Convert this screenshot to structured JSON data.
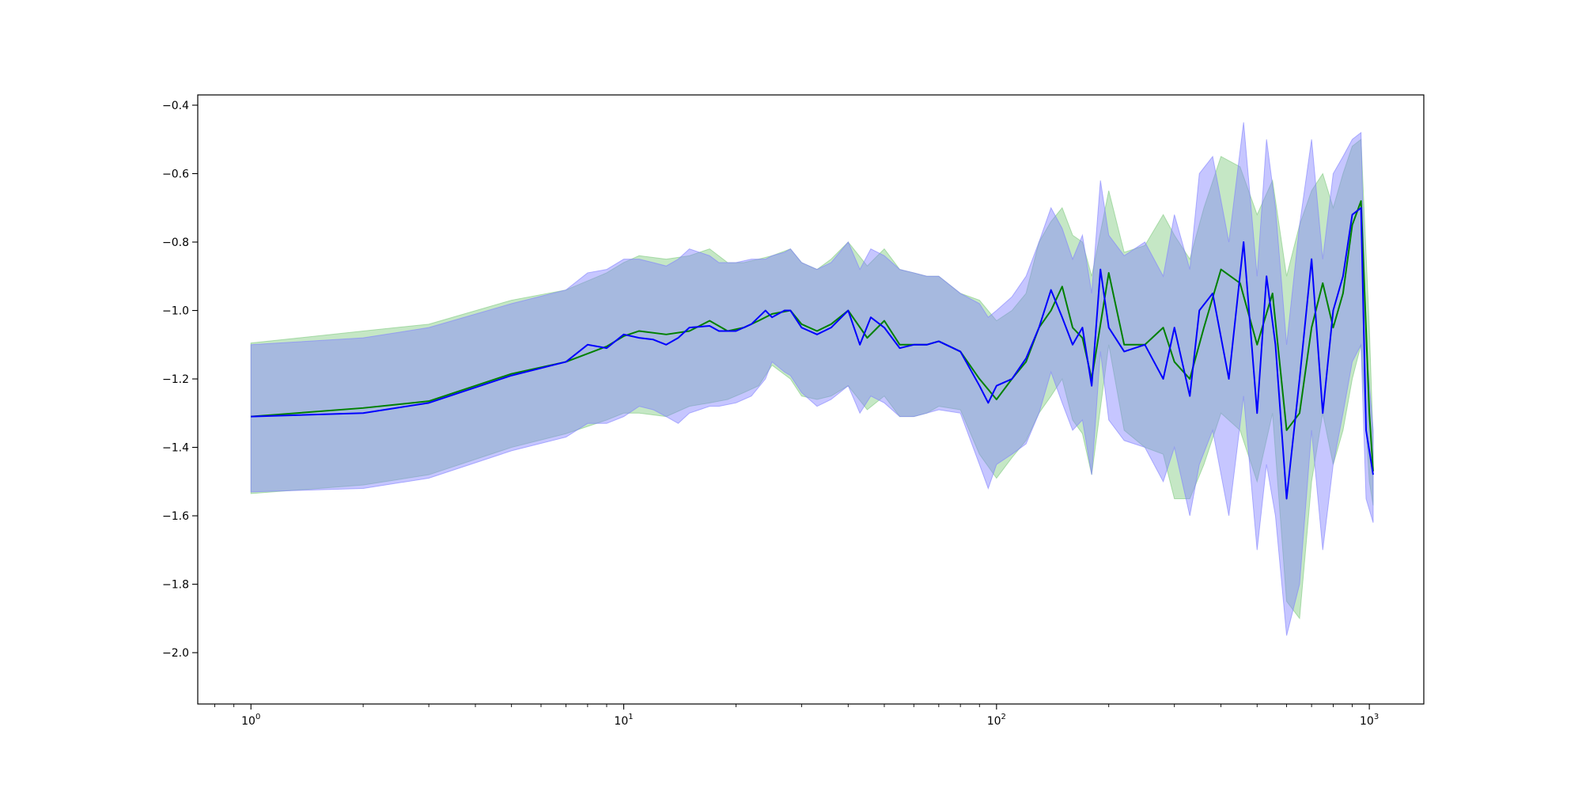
{
  "chart_data": {
    "type": "line",
    "title": "",
    "xlabel": "",
    "ylabel": "",
    "xscale": "log",
    "xlim": [
      0.72,
      1400
    ],
    "ylim": [
      -2.15,
      -0.37
    ],
    "grid": false,
    "x_ticks": [
      {
        "base": "10",
        "exp": "0",
        "value": 1
      },
      {
        "base": "10",
        "exp": "1",
        "value": 10
      },
      {
        "base": "10",
        "exp": "2",
        "value": 100
      },
      {
        "base": "10",
        "exp": "3",
        "value": 1000
      }
    ],
    "y_ticks": [
      {
        "label": "−0.4",
        "value": -0.4
      },
      {
        "label": "−0.6",
        "value": -0.6
      },
      {
        "label": "−0.8",
        "value": -0.8
      },
      {
        "label": "−1.0",
        "value": -1.0
      },
      {
        "label": "−1.2",
        "value": -1.2
      },
      {
        "label": "−1.4",
        "value": -1.4
      },
      {
        "label": "−1.6",
        "value": -1.6
      },
      {
        "label": "−1.8",
        "value": -1.8
      },
      {
        "label": "−2.0",
        "value": -2.0
      }
    ],
    "series": [
      {
        "color": "#008000",
        "band_color": "#7fc97f",
        "x": [
          1,
          2,
          3,
          5,
          7,
          9,
          10,
          11,
          13,
          15,
          17,
          19,
          21,
          23,
          25,
          28,
          30,
          33,
          36,
          40,
          45,
          50,
          55,
          60,
          65,
          70,
          80,
          90,
          100,
          110,
          120,
          130,
          140,
          150,
          160,
          170,
          180,
          200,
          220,
          250,
          280,
          300,
          330,
          360,
          400,
          450,
          500,
          550,
          600,
          650,
          700,
          750,
          800,
          850,
          900,
          950,
          1000,
          1024
        ],
        "y": [
          -1.31,
          -1.285,
          -1.265,
          -1.185,
          -1.15,
          -1.105,
          -1.075,
          -1.06,
          -1.07,
          -1.06,
          -1.03,
          -1.06,
          -1.05,
          -1.03,
          -1.01,
          -1.0,
          -1.04,
          -1.06,
          -1.04,
          -1.0,
          -1.08,
          -1.03,
          -1.1,
          -1.1,
          -1.1,
          -1.09,
          -1.12,
          -1.2,
          -1.26,
          -1.2,
          -1.15,
          -1.05,
          -1.0,
          -0.93,
          -1.05,
          -1.08,
          -1.2,
          -0.89,
          -1.1,
          -1.1,
          -1.05,
          -1.15,
          -1.2,
          -1.05,
          -0.88,
          -0.92,
          -1.1,
          -0.95,
          -1.35,
          -1.3,
          -1.05,
          -0.92,
          -1.05,
          -0.95,
          -0.75,
          -0.68,
          -1.3,
          -1.47
        ],
        "lower": [
          -1.535,
          -1.51,
          -1.48,
          -1.4,
          -1.36,
          -1.32,
          -1.3,
          -1.3,
          -1.31,
          -1.28,
          -1.27,
          -1.26,
          -1.24,
          -1.22,
          -1.16,
          -1.2,
          -1.25,
          -1.26,
          -1.25,
          -1.22,
          -1.29,
          -1.25,
          -1.31,
          -1.31,
          -1.3,
          -1.28,
          -1.29,
          -1.42,
          -1.49,
          -1.43,
          -1.38,
          -1.3,
          -1.25,
          -1.2,
          -1.32,
          -1.36,
          -1.48,
          -1.1,
          -1.35,
          -1.4,
          -1.42,
          -1.55,
          -1.55,
          -1.45,
          -1.3,
          -1.35,
          -1.5,
          -1.3,
          -1.85,
          -1.9,
          -1.5,
          -1.3,
          -1.45,
          -1.35,
          -1.2,
          -1.1,
          -1.5,
          -1.57
        ],
        "upper": [
          -1.095,
          -1.06,
          -1.04,
          -0.97,
          -0.94,
          -0.89,
          -0.86,
          -0.84,
          -0.85,
          -0.84,
          -0.82,
          -0.86,
          -0.86,
          -0.85,
          -0.84,
          -0.82,
          -0.86,
          -0.88,
          -0.85,
          -0.8,
          -0.87,
          -0.82,
          -0.88,
          -0.89,
          -0.9,
          -0.9,
          -0.95,
          -0.97,
          -1.03,
          -1.0,
          -0.95,
          -0.8,
          -0.74,
          -0.7,
          -0.78,
          -0.8,
          -0.9,
          -0.65,
          -0.83,
          -0.81,
          -0.72,
          -0.78,
          -0.85,
          -0.7,
          -0.55,
          -0.58,
          -0.72,
          -0.62,
          -0.9,
          -0.75,
          -0.65,
          -0.6,
          -0.7,
          -0.6,
          -0.52,
          -0.5,
          -1.05,
          -1.38
        ]
      },
      {
        "color": "#0000ff",
        "band_color": "#8080ff",
        "x": [
          1,
          2,
          3,
          5,
          7,
          8,
          9,
          10,
          11,
          12,
          13,
          14,
          15,
          17,
          18,
          20,
          22,
          24,
          25,
          27,
          28,
          30,
          33,
          36,
          40,
          43,
          46,
          50,
          55,
          60,
          65,
          70,
          80,
          90,
          95,
          100,
          110,
          120,
          130,
          140,
          150,
          160,
          170,
          180,
          190,
          200,
          220,
          250,
          280,
          300,
          330,
          350,
          380,
          420,
          460,
          500,
          530,
          560,
          600,
          650,
          700,
          750,
          800,
          850,
          900,
          950,
          980,
          1024
        ],
        "y": [
          -1.31,
          -1.3,
          -1.27,
          -1.19,
          -1.15,
          -1.1,
          -1.11,
          -1.07,
          -1.08,
          -1.085,
          -1.1,
          -1.08,
          -1.05,
          -1.045,
          -1.06,
          -1.06,
          -1.04,
          -1.0,
          -1.02,
          -1.0,
          -1.0,
          -1.05,
          -1.07,
          -1.05,
          -1.0,
          -1.1,
          -1.02,
          -1.05,
          -1.11,
          -1.1,
          -1.1,
          -1.09,
          -1.12,
          -1.22,
          -1.27,
          -1.22,
          -1.2,
          -1.14,
          -1.05,
          -0.94,
          -1.02,
          -1.1,
          -1.05,
          -1.22,
          -0.88,
          -1.05,
          -1.12,
          -1.1,
          -1.2,
          -1.05,
          -1.25,
          -1.0,
          -0.95,
          -1.2,
          -0.8,
          -1.3,
          -0.9,
          -1.1,
          -1.55,
          -1.2,
          -0.85,
          -1.3,
          -1.0,
          -0.9,
          -0.72,
          -0.7,
          -1.35,
          -1.48
        ],
        "lower": [
          -1.53,
          -1.52,
          -1.49,
          -1.41,
          -1.37,
          -1.33,
          -1.33,
          -1.31,
          -1.28,
          -1.29,
          -1.31,
          -1.33,
          -1.3,
          -1.28,
          -1.28,
          -1.27,
          -1.25,
          -1.2,
          -1.15,
          -1.18,
          -1.19,
          -1.24,
          -1.28,
          -1.26,
          -1.22,
          -1.3,
          -1.25,
          -1.27,
          -1.31,
          -1.31,
          -1.3,
          -1.29,
          -1.3,
          -1.45,
          -1.52,
          -1.45,
          -1.42,
          -1.39,
          -1.3,
          -1.18,
          -1.27,
          -1.35,
          -1.32,
          -1.48,
          -1.12,
          -1.32,
          -1.38,
          -1.4,
          -1.5,
          -1.4,
          -1.6,
          -1.45,
          -1.35,
          -1.6,
          -1.25,
          -1.7,
          -1.45,
          -1.6,
          -1.95,
          -1.8,
          -1.35,
          -1.7,
          -1.45,
          -1.3,
          -1.15,
          -1.1,
          -1.55,
          -1.62
        ],
        "upper": [
          -1.1,
          -1.08,
          -1.05,
          -0.98,
          -0.94,
          -0.89,
          -0.88,
          -0.85,
          -0.85,
          -0.86,
          -0.87,
          -0.85,
          -0.82,
          -0.84,
          -0.86,
          -0.86,
          -0.85,
          -0.85,
          -0.84,
          -0.83,
          -0.82,
          -0.86,
          -0.88,
          -0.86,
          -0.8,
          -0.88,
          -0.82,
          -0.84,
          -0.88,
          -0.89,
          -0.9,
          -0.9,
          -0.95,
          -0.98,
          -1.02,
          -1.0,
          -0.96,
          -0.9,
          -0.8,
          -0.7,
          -0.76,
          -0.85,
          -0.78,
          -0.95,
          -0.62,
          -0.78,
          -0.84,
          -0.8,
          -0.9,
          -0.72,
          -0.88,
          -0.6,
          -0.55,
          -0.8,
          -0.45,
          -0.9,
          -0.5,
          -0.7,
          -1.1,
          -0.75,
          -0.5,
          -0.85,
          -0.6,
          -0.55,
          -0.5,
          -0.48,
          -1.1,
          -1.35
        ]
      }
    ]
  }
}
